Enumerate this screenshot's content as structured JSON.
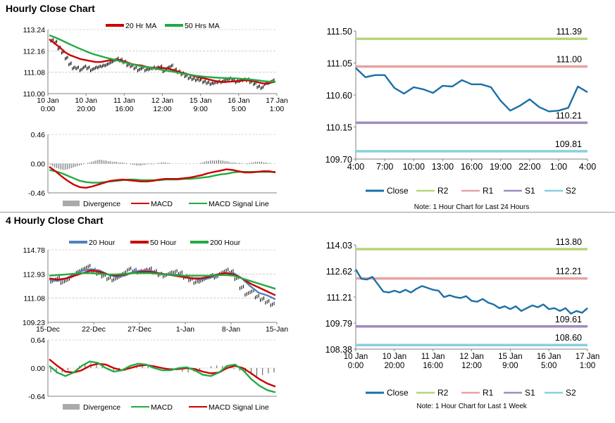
{
  "sections": {
    "hourly_title": "Hourly Close Chart",
    "four_hourly_title": "4 Hourly Close Chart"
  },
  "chart_data": [
    {
      "id": "hourly_price",
      "type": "candlestick_with_ma",
      "x_ticks": [
        [
          "10 Jan",
          "0:00"
        ],
        [
          "10 Jan",
          "20:00"
        ],
        [
          "11 Jan",
          "16:00"
        ],
        [
          "12 Jan",
          "12:00"
        ],
        [
          "15 Jan",
          "9:00"
        ],
        [
          "16 Jan",
          "5:00"
        ],
        [
          "17 Jan",
          "1:00"
        ]
      ],
      "y_ticks": [
        "113.24",
        "112.16",
        "111.08",
        "110.00"
      ],
      "ylim": [
        110.0,
        113.24
      ],
      "legend": [
        "20 Hr MA",
        "50 Hrs MA"
      ],
      "series_colors": {
        "price": "#000000",
        "ma_fast": "#cc0000",
        "ma_slow": "#22aa44"
      },
      "price": [
        112.7,
        112.6,
        112.3,
        112.1,
        111.8,
        111.5,
        111.3,
        111.3,
        111.2,
        111.35,
        111.3,
        111.2,
        111.3,
        111.35,
        111.4,
        111.45,
        111.55,
        111.65,
        111.75,
        111.7,
        111.6,
        111.45,
        111.4,
        111.3,
        111.2,
        111.3,
        111.2,
        111.25,
        111.3,
        111.3,
        111.35,
        111.15,
        111.3,
        111.4,
        111.2,
        111.1,
        111.0,
        110.9,
        110.8,
        110.75,
        110.7,
        110.7,
        110.6,
        110.55,
        110.5,
        110.55,
        110.6,
        110.6,
        110.7,
        110.75,
        110.7,
        110.6,
        110.65,
        110.7,
        110.7,
        110.6,
        110.5,
        110.35,
        110.3,
        110.5,
        110.55,
        110.65
      ],
      "ma_fast": [
        112.75,
        112.55,
        112.35,
        112.1,
        111.95,
        111.85,
        111.75,
        111.7,
        111.65,
        111.6,
        111.6,
        111.65,
        111.7,
        111.72,
        111.68,
        111.6,
        111.5,
        111.45,
        111.42,
        111.35,
        111.3,
        111.28,
        111.3,
        111.27,
        111.2,
        111.12,
        111.05,
        110.98,
        110.9,
        110.83,
        110.78,
        110.72,
        110.66,
        110.6,
        110.58,
        110.6,
        110.62,
        110.65,
        110.68,
        110.66,
        110.62,
        110.55,
        110.5,
        110.55,
        110.6
      ],
      "ma_slow": [
        112.95,
        112.85,
        112.72,
        112.58,
        112.45,
        112.32,
        112.2,
        112.08,
        111.98,
        111.9,
        111.82,
        111.75,
        111.68,
        111.6,
        111.53,
        111.46,
        111.4,
        111.35,
        111.3,
        111.25,
        111.2,
        111.15,
        111.1,
        111.05,
        111.0,
        110.95,
        110.9,
        110.87,
        110.84,
        110.82,
        110.8,
        110.79,
        110.78,
        110.77,
        110.75,
        110.73,
        110.7,
        110.67,
        110.63,
        110.6,
        110.6
      ]
    },
    {
      "id": "hourly_macd",
      "type": "macd",
      "y_ticks": [
        "0.46",
        "0.00",
        "-0.46"
      ],
      "ylim": [
        -0.46,
        0.46
      ],
      "legend": [
        "Divergence",
        "MACD",
        "MACD Signal Line"
      ],
      "series_colors": {
        "divergence": "#555555",
        "macd": "#cc0000",
        "signal": "#22aa44"
      },
      "divergence": [
        -0.02,
        -0.04,
        -0.06,
        -0.07,
        -0.08,
        -0.09,
        -0.1,
        -0.1,
        -0.09,
        -0.08,
        -0.07,
        -0.06,
        -0.05,
        -0.04,
        -0.03,
        -0.02,
        -0.01,
        0.0,
        0.01,
        0.02,
        0.03,
        0.04,
        0.05,
        0.06,
        0.06,
        0.06,
        0.05,
        0.05,
        0.04,
        0.04,
        0.03,
        0.03,
        0.03,
        0.02,
        0.02,
        0.02,
        0.01,
        0.01,
        0.0,
        -0.01,
        -0.02,
        -0.02,
        -0.03,
        -0.03,
        -0.03,
        -0.02,
        -0.02,
        -0.01,
        -0.01,
        -0.01,
        -0.01,
        0.0,
        0.01,
        0.01,
        0.02,
        0.02,
        0.02,
        0.01,
        0.01,
        0.0,
        0.0,
        0.0,
        0.0,
        0.0,
        0.0,
        0.0,
        0.0,
        0.0,
        0.0,
        0.0,
        0.0,
        0.0,
        0.0,
        0.01,
        0.02,
        0.03,
        0.04,
        0.04,
        0.05,
        0.05,
        0.05,
        0.05,
        0.06,
        0.05,
        0.05,
        0.04,
        0.04,
        0.03,
        0.02,
        0.02,
        0.02,
        0.01,
        0.01,
        0.01,
        0.0,
        0.0,
        -0.01,
        0.01,
        0.02,
        0.02,
        0.03,
        0.03,
        0.03,
        0.03,
        0.02,
        0.02,
        0.01,
        0.01,
        0.0,
        0.0
      ],
      "macd": [
        -0.05,
        -0.12,
        -0.2,
        -0.27,
        -0.33,
        -0.37,
        -0.38,
        -0.36,
        -0.33,
        -0.3,
        -0.27,
        -0.26,
        -0.25,
        -0.26,
        -0.27,
        -0.28,
        -0.28,
        -0.27,
        -0.25,
        -0.24,
        -0.24,
        -0.24,
        -0.23,
        -0.22,
        -0.2,
        -0.18,
        -0.15,
        -0.13,
        -0.11,
        -0.09,
        -0.1,
        -0.12,
        -0.14,
        -0.14,
        -0.13,
        -0.12,
        -0.12,
        -0.14
      ],
      "signal": [
        -0.1,
        -0.12,
        -0.15,
        -0.19,
        -0.23,
        -0.27,
        -0.29,
        -0.3,
        -0.3,
        -0.29,
        -0.28,
        -0.27,
        -0.26,
        -0.25,
        -0.25,
        -0.26,
        -0.26,
        -0.26,
        -0.26,
        -0.25,
        -0.25,
        -0.25,
        -0.24,
        -0.24,
        -0.23,
        -0.22,
        -0.21,
        -0.19,
        -0.17,
        -0.16,
        -0.14,
        -0.13,
        -0.13,
        -0.13,
        -0.13,
        -0.13,
        -0.13,
        -0.13
      ]
    },
    {
      "id": "hourly_levels",
      "type": "line",
      "x_ticks": [
        "4:00",
        "7:00",
        "10:00",
        "13:00",
        "16:00",
        "19:00",
        "22:00",
        "1:00",
        "4:00"
      ],
      "y_ticks": [
        "111.50",
        "111.05",
        "110.60",
        "110.15",
        "109.70"
      ],
      "ylim": [
        109.7,
        111.5
      ],
      "levels": [
        {
          "name": "R2",
          "value": 111.39,
          "label": "111.39",
          "color": "#b5d67a"
        },
        {
          "name": "R1",
          "value": 111.0,
          "label": "111.00",
          "color": "#e8a2a2"
        },
        {
          "name": "S1",
          "value": 110.21,
          "label": "110.21",
          "color": "#a08ac0"
        },
        {
          "name": "S2",
          "value": 109.81,
          "label": "109.81",
          "color": "#88d0e0"
        }
      ],
      "close_color": "#1a6fa6",
      "close": [
        110.98,
        110.85,
        110.88,
        110.88,
        110.7,
        110.62,
        110.71,
        110.68,
        110.63,
        110.73,
        110.72,
        110.81,
        110.75,
        110.75,
        110.71,
        110.52,
        110.38,
        110.45,
        110.54,
        110.43,
        110.37,
        110.38,
        110.42,
        110.72,
        110.64
      ],
      "legend": [
        "Close",
        "R2",
        "R1",
        "S1",
        "S2"
      ],
      "note": "Note: 1 Hour Chart for Last 24 Hours"
    },
    {
      "id": "four_hourly_price",
      "type": "candlestick_with_ma",
      "x_ticks": [
        "15-Dec",
        "22-Dec",
        "27-Dec",
        "1-Jan",
        "8-Jan",
        "15-Jan"
      ],
      "y_ticks": [
        "114.78",
        "112.93",
        "111.08",
        "109.23"
      ],
      "ylim": [
        109.23,
        114.78
      ],
      "legend": [
        "20 Hour",
        "50 Hour",
        "200 Hour"
      ],
      "series_colors": {
        "price": "#000000",
        "ma_a": "#4f81bd",
        "ma_b": "#cc0000",
        "ma_c": "#22aa44"
      },
      "price": [
        112.4,
        112.6,
        112.3,
        112.5,
        112.8,
        113.1,
        113.3,
        113.5,
        113.2,
        113.0,
        112.8,
        112.6,
        112.5,
        112.7,
        113.0,
        113.3,
        113.2,
        113.1,
        113.2,
        113.3,
        113.1,
        112.9,
        112.8,
        113.0,
        113.1,
        113.0,
        112.7,
        112.5,
        112.3,
        112.4,
        112.6,
        112.8,
        112.7,
        113.0,
        113.2,
        113.1,
        112.6,
        111.9,
        111.4,
        111.6,
        111.2,
        111.0,
        110.8,
        110.6
      ],
      "ma_a": [
        112.5,
        112.4,
        112.6,
        112.9,
        113.2,
        113.3,
        113.2,
        112.9,
        112.7,
        112.8,
        113.1,
        113.2,
        113.2,
        113.0,
        112.9,
        112.9,
        112.8,
        112.6,
        112.5,
        112.6,
        112.8,
        113.0,
        113.0,
        112.6,
        112.0,
        111.5,
        111.3,
        111.0
      ],
      "ma_b": [
        112.6,
        112.5,
        112.6,
        112.8,
        113.0,
        113.2,
        113.1,
        112.9,
        112.8,
        112.9,
        113.0,
        113.1,
        113.1,
        113.0,
        112.9,
        112.8,
        112.7,
        112.6,
        112.6,
        112.7,
        112.9,
        113.0,
        112.9,
        112.6,
        112.2,
        111.9,
        111.6,
        111.3
      ],
      "ma_c": [
        112.8,
        112.85,
        112.9,
        112.95,
        113.0,
        113.0,
        112.95,
        112.9,
        112.9,
        112.95,
        113.0,
        113.0,
        113.0,
        112.95,
        112.9,
        112.85,
        112.8,
        112.8,
        112.8,
        112.8,
        112.85,
        112.85,
        112.8,
        112.6,
        112.4,
        112.2,
        112.0,
        111.8
      ]
    },
    {
      "id": "four_hourly_macd",
      "type": "macd",
      "y_ticks": [
        "0.64",
        "0.00",
        "-0.64"
      ],
      "ylim": [
        -0.64,
        0.64
      ],
      "legend": [
        "Divergence",
        "MACD",
        "MACD Signal Line"
      ],
      "series_colors": {
        "divergence": "#555555",
        "macd": "#22aa44",
        "signal": "#cc0000"
      },
      "divergence": [
        -0.1,
        -0.12,
        -0.1,
        -0.05,
        0.0,
        0.05,
        0.1,
        0.12,
        0.1,
        0.05,
        0.0,
        -0.05,
        -0.08,
        -0.06,
        -0.02,
        0.02,
        0.05,
        0.06,
        0.04,
        0.02,
        0.0,
        -0.02,
        -0.05,
        -0.08,
        -0.1,
        -0.08,
        -0.04,
        0.0,
        0.04,
        0.06,
        0.05,
        0.02,
        -0.02,
        -0.06,
        -0.1,
        -0.15,
        -0.18,
        -0.16,
        -0.12,
        -0.1
      ],
      "macd": [
        0.05,
        -0.1,
        -0.18,
        -0.1,
        0.05,
        0.15,
        0.12,
        0.0,
        -0.08,
        -0.05,
        0.05,
        0.1,
        0.08,
        0.0,
        -0.05,
        -0.05,
        0.0,
        0.02,
        -0.05,
        -0.15,
        -0.18,
        -0.1,
        0.05,
        0.08,
        -0.05,
        -0.25,
        -0.4,
        -0.5,
        -0.55
      ],
      "signal": [
        0.2,
        0.05,
        -0.08,
        -0.1,
        -0.05,
        0.05,
        0.1,
        0.08,
        0.0,
        -0.05,
        0.0,
        0.05,
        0.07,
        0.04,
        0.0,
        -0.03,
        -0.02,
        0.0,
        -0.02,
        -0.08,
        -0.12,
        -0.1,
        0.0,
        0.05,
        0.0,
        -0.12,
        -0.25,
        -0.35,
        -0.42
      ]
    },
    {
      "id": "four_hourly_levels",
      "type": "line",
      "x_ticks": [
        [
          "10 Jan",
          "0:00"
        ],
        [
          "10 Jan",
          "20:00"
        ],
        [
          "11 Jan",
          "16:00"
        ],
        [
          "12 Jan",
          "12:00"
        ],
        [
          "15 Jan",
          "9:00"
        ],
        [
          "16 Jan",
          "5:00"
        ],
        [
          "17 Jan",
          "1:00"
        ]
      ],
      "y_ticks": [
        "114.03",
        "112.62",
        "111.21",
        "109.79",
        "108.38"
      ],
      "ylim": [
        108.38,
        114.03
      ],
      "levels": [
        {
          "name": "R2",
          "value": 113.8,
          "label": "113.80",
          "color": "#b5d67a"
        },
        {
          "name": "R1",
          "value": 112.21,
          "label": "112.21",
          "color": "#e8a2a2"
        },
        {
          "name": "S1",
          "value": 109.61,
          "label": "109.61",
          "color": "#a08ac0"
        },
        {
          "name": "S2",
          "value": 108.6,
          "label": "108.60",
          "color": "#88d0e0"
        }
      ],
      "close_color": "#1a6fa6",
      "close": [
        112.7,
        112.2,
        112.15,
        112.3,
        111.9,
        111.5,
        111.45,
        111.55,
        111.45,
        111.6,
        111.45,
        111.65,
        111.8,
        111.7,
        111.6,
        111.55,
        111.2,
        111.3,
        111.2,
        111.15,
        111.25,
        111.0,
        110.95,
        111.1,
        110.9,
        110.8,
        110.6,
        110.7,
        110.55,
        110.7,
        110.45,
        110.6,
        110.75,
        110.65,
        110.8,
        110.55,
        110.6,
        110.45,
        110.6,
        110.3,
        110.45,
        110.35,
        110.6
      ],
      "legend": [
        "Close",
        "R2",
        "R1",
        "S1",
        "S2"
      ],
      "note": "Note: 1 Hour Chart for Last 1 Week"
    }
  ]
}
